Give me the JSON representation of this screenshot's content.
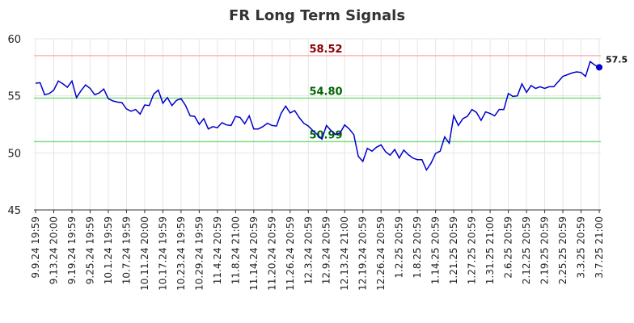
{
  "chart_data": {
    "type": "line",
    "title": "FR Long Term Signals",
    "xlabel": "",
    "ylabel": "",
    "ylim": [
      45,
      60
    ],
    "yticks": [
      45,
      50,
      55,
      60
    ],
    "grid": true,
    "x_tick_labels": [
      "9.9.24 19:59",
      "9.13.24 20:00",
      "9.19.24 19:59",
      "9.25.24 19:59",
      "10.1.24 19:59",
      "10.7.24 19:59",
      "10.11.24 20:00",
      "10.17.24 19:59",
      "10.23.24 19:59",
      "10.29.24 19:59",
      "11.4.24 20:59",
      "11.8.24 21:00",
      "11.14.24 20:59",
      "11.20.24 20:59",
      "11.26.24 20:59",
      "12.3.24 20:59",
      "12.9.24 20:59",
      "12.13.24 21:00",
      "12.19.24 20:59",
      "12.26.24 20:59",
      "1.2.25 20:59",
      "1.8.25 20:59",
      "1.14.25 20:59",
      "1.21.25 20:59",
      "1.27.25 20:59",
      "1.31.25 21:00",
      "2.6.25 20:59",
      "2.12.25 20:59",
      "2.19.25 20:59",
      "2.25.25 20:59",
      "3.3.25 20:59",
      "3.7.25 21:00"
    ],
    "values": [
      56.1,
      56.15,
      55.1,
      55.2,
      55.5,
      56.3,
      56.05,
      55.75,
      56.3,
      54.85,
      55.45,
      55.95,
      55.65,
      55.1,
      55.25,
      55.6,
      54.75,
      54.55,
      54.45,
      54.4,
      53.85,
      53.65,
      53.8,
      53.4,
      54.2,
      54.15,
      55.15,
      55.5,
      54.35,
      54.85,
      54.15,
      54.6,
      54.75,
      54.15,
      53.25,
      53.2,
      52.5,
      53.0,
      52.1,
      52.3,
      52.2,
      52.65,
      52.45,
      52.4,
      53.2,
      53.1,
      52.55,
      53.25,
      52.1,
      52.1,
      52.3,
      52.6,
      52.4,
      52.35,
      53.45,
      54.1,
      53.5,
      53.7,
      53.1,
      52.6,
      52.35,
      51.95,
      51.6,
      51.2,
      52.4,
      51.95,
      51.6,
      51.75,
      52.45,
      52.1,
      51.6,
      49.7,
      49.25,
      50.4,
      50.15,
      50.5,
      50.7,
      50.1,
      49.8,
      50.3,
      49.55,
      50.25,
      49.85,
      49.55,
      49.4,
      49.4,
      48.5,
      49.1,
      49.95,
      50.15,
      51.4,
      50.85,
      53.25,
      52.4,
      53.0,
      53.2,
      53.8,
      53.55,
      52.85,
      53.6,
      53.45,
      53.25,
      53.8,
      53.8,
      55.2,
      54.95,
      55.0,
      56.05,
      55.3,
      55.9,
      55.65,
      55.8,
      55.65,
      55.8,
      55.8,
      56.25,
      56.7,
      56.85,
      57.0,
      57.1,
      57.05,
      56.7,
      58.0,
      57.7,
      57.5
    ],
    "levels": [
      {
        "value": 58.52,
        "label": "58.52",
        "line_color": "#ffb3b3",
        "text_color": "#8b0000"
      },
      {
        "value": 54.8,
        "label": "54.80",
        "line_color": "#7ddc7d",
        "text_color": "#006400"
      },
      {
        "value": 50.99,
        "label": "50.99",
        "line_color": "#7ddc7d",
        "text_color": "#006400"
      }
    ],
    "last_value_label": "57.5",
    "series_color": "#0000cc",
    "grid_color": "#e6e6e6"
  }
}
